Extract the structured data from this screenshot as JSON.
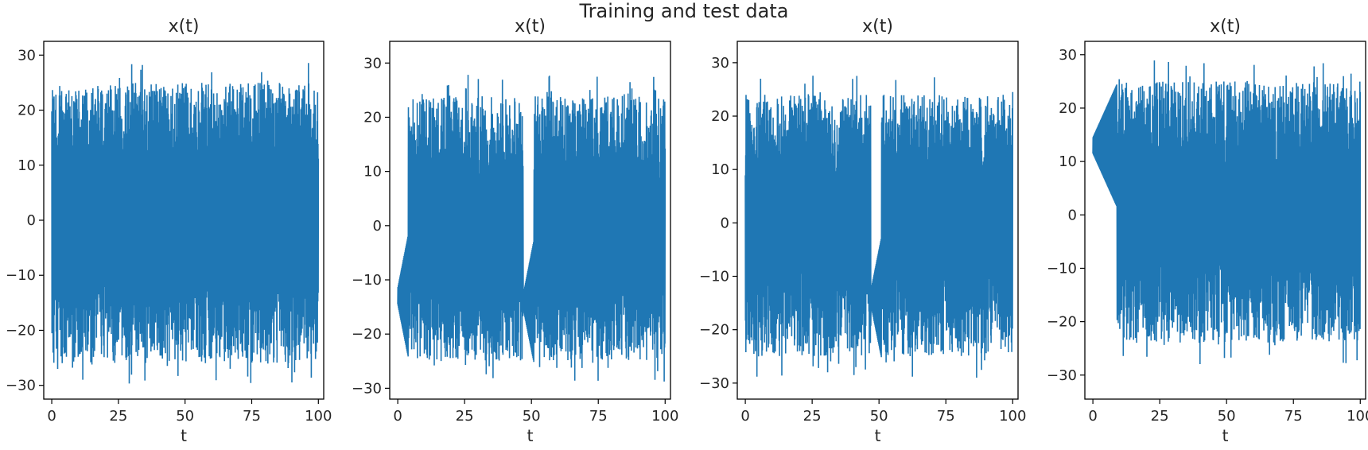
{
  "figure": {
    "suptitle": "Training and test data"
  },
  "colors": {
    "series": "#1f77b4",
    "axes": "#000000",
    "background": "#ffffff"
  },
  "chart_data": [
    {
      "type": "line",
      "title": "x(t)",
      "xlabel": "t",
      "ylabel": "",
      "xlim": [
        -3,
        102
      ],
      "ylim": [
        -32.5,
        32.5
      ],
      "xticks": [
        0,
        25,
        50,
        75,
        100
      ],
      "yticks": [
        -30,
        -20,
        -10,
        0,
        10,
        20,
        30
      ],
      "series": [
        {
          "lo": -26,
          "hi": 25
        }
      ],
      "grid": false,
      "legend": "none",
      "seed": 3,
      "events": [],
      "annotations_text": [
        "0",
        "25",
        "50",
        "75",
        "100"
      ]
    },
    {
      "type": "line",
      "title": "x(t)",
      "xlabel": "t",
      "ylabel": "",
      "xlim": [
        -3,
        102
      ],
      "ylim": [
        -32,
        34
      ],
      "xticks": [
        0,
        25,
        50,
        75,
        100
      ],
      "yticks": [
        -30,
        -20,
        -10,
        0,
        10,
        20,
        30
      ],
      "series": [
        {
          "lo": -25,
          "hi": 24
        }
      ],
      "grid": false,
      "legend": "none",
      "seed": 7,
      "events": [
        {
          "t": 0,
          "v": -13,
          "len": 4,
          "side": "neg"
        },
        {
          "t": 47,
          "v": -14,
          "len": 4,
          "side": "neg"
        }
      ]
    },
    {
      "type": "line",
      "title": "x(t)",
      "xlabel": "t",
      "ylabel": "",
      "xlim": [
        -3,
        102
      ],
      "ylim": [
        -33,
        34
      ],
      "xticks": [
        0,
        25,
        50,
        75,
        100
      ],
      "yticks": [
        -30,
        -20,
        -10,
        0,
        10,
        20,
        30
      ],
      "series": [
        {
          "lo": -25,
          "hi": 24
        }
      ],
      "grid": false,
      "legend": "none",
      "seed": 11,
      "events": [
        {
          "t": 47,
          "v": -14,
          "len": 4,
          "side": "neg"
        }
      ]
    },
    {
      "type": "line",
      "title": "x(t)",
      "xlabel": "t",
      "ylabel": "",
      "xlim": [
        -3,
        102
      ],
      "ylim": [
        -34.5,
        32.5
      ],
      "xticks": [
        0,
        25,
        50,
        75,
        100
      ],
      "yticks": [
        -30,
        -20,
        -10,
        0,
        10,
        20,
        30
      ],
      "series": [
        {
          "lo": -24,
          "hi": 25
        }
      ],
      "grid": false,
      "legend": "none",
      "seed": 19,
      "events": [
        {
          "t": 0,
          "v": 13,
          "len": 9,
          "side": "pos"
        }
      ]
    }
  ]
}
